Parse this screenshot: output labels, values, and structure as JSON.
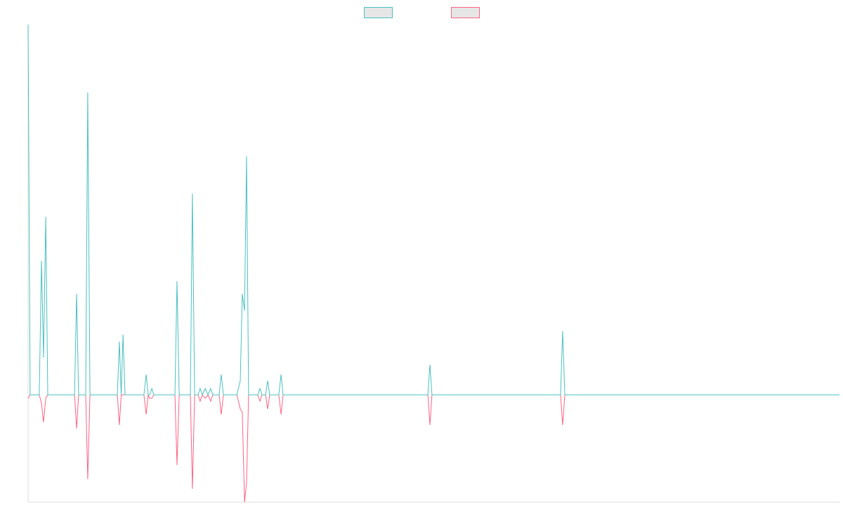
{
  "chart_data": {
    "type": "line",
    "legend": "top",
    "grid": false,
    "xlim": [
      0,
      400
    ],
    "ylim": [
      -153,
      528
    ],
    "x": [
      0,
      1,
      5.5,
      6.6,
      7.6,
      8.7,
      9.7,
      22.9,
      23.9,
      24.9,
      28.4,
      29.4,
      30.5,
      44,
      45,
      45.9,
      46.8,
      47.8,
      57.1,
      58.2,
      59.2,
      59.9,
      61,
      62,
      72.4,
      73.4,
      74.5,
      80,
      81,
      82.1,
      83.8,
      84.8,
      85.9,
      87.3,
      88.7,
      90,
      91.1,
      94.2,
      95.2,
      96.3,
      102.9,
      104.6,
      105.6,
      106.7,
      107.7,
      108.7,
      113.2,
      114.3,
      115.3,
      117.1,
      118.1,
      119.1,
      123.6,
      124.7,
      125.7,
      197.1,
      198.1,
      199.1,
      262.5,
      263.5,
      264.6,
      400
    ],
    "series": [
      {
        "color": "#4bc0c0",
        "values": [
          528,
          0,
          0,
          191,
          53,
          254,
          0,
          0,
          144,
          0,
          0,
          431,
          0,
          0,
          76,
          0,
          86,
          0,
          0,
          29,
          0,
          0,
          9,
          0,
          0,
          162,
          0,
          0,
          287,
          0,
          0,
          9,
          0,
          9,
          0,
          9,
          0,
          0,
          29,
          0,
          0,
          20,
          144,
          120,
          340,
          0,
          0,
          9,
          0,
          0,
          20,
          0,
          0,
          29,
          0,
          0,
          43,
          0,
          0,
          91,
          0,
          0
        ]
      },
      {
        "color": "#ff6384",
        "values": [
          -5,
          0,
          0,
          -12,
          -39,
          -5,
          0,
          0,
          -48,
          0,
          0,
          -120,
          0,
          0,
          -43,
          0,
          0,
          0,
          0,
          -28,
          0,
          -5,
          -5,
          0,
          0,
          -100,
          0,
          0,
          -134,
          0,
          0,
          -9,
          0,
          -5,
          0,
          -9,
          0,
          0,
          -28,
          0,
          0,
          -20,
          -25,
          -153,
          -125,
          0,
          0,
          -9,
          0,
          0,
          -20,
          0,
          0,
          -28,
          0,
          0,
          -43,
          0,
          0,
          -43,
          0,
          0
        ]
      }
    ]
  }
}
